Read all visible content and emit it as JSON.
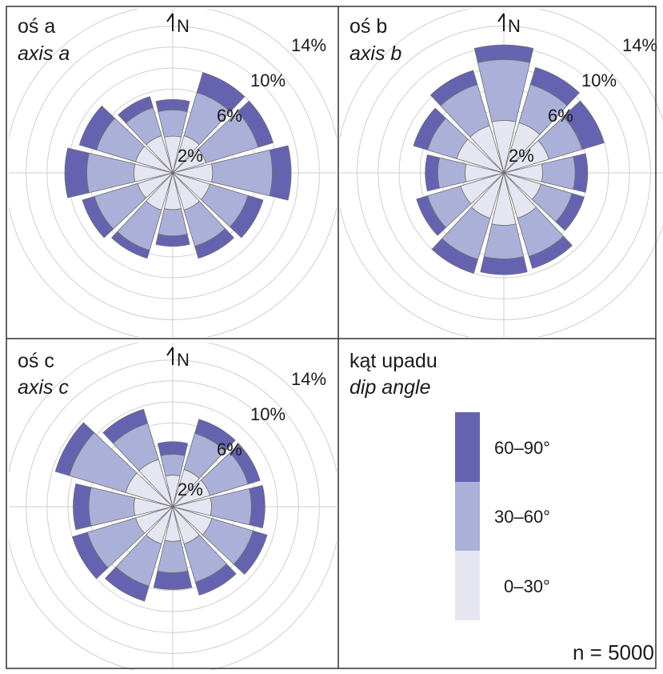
{
  "colors": {
    "band_0_30": "#e6e6f2",
    "band_30_60": "#aab0d8",
    "band_60_90": "#6563b0",
    "outline": "#6f6f6f",
    "grid": "#cfcfcf",
    "frame": "#333333"
  },
  "north_label": "N",
  "legend": {
    "title": "kąt upadu",
    "subtitle": "dip angle",
    "items": [
      {
        "label": "60–90°",
        "color": "#6563b0"
      },
      {
        "label": "30–60°",
        "color": "#aab0d8"
      },
      {
        "label": "0–30°",
        "color": "#e6e6f2"
      }
    ]
  },
  "sample_size": "n = 5000",
  "chart_data": [
    {
      "type": "rose",
      "title": "oś a",
      "subtitle": "axis a",
      "ring_labels": [
        "2%",
        "6%",
        "10%",
        "14%"
      ],
      "ring_values": [
        2,
        6,
        10,
        14
      ],
      "grid_extent": 16,
      "sector_width_deg": 30,
      "sectors": [
        {
          "direction": 0,
          "v0_30": 3.5,
          "v30_60": 6.0,
          "v60_90": 7.0
        },
        {
          "direction": 30,
          "v0_30": 3.7,
          "v30_60": 8.0,
          "v60_90": 10.0
        },
        {
          "direction": 60,
          "v0_30": 3.3,
          "v30_60": 8.5,
          "v60_90": 10.0
        },
        {
          "direction": 90,
          "v0_30": 3.8,
          "v30_60": 9.5,
          "v60_90": 11.3
        },
        {
          "direction": 120,
          "v0_30": 3.7,
          "v30_60": 7.5,
          "v60_90": 9.0
        },
        {
          "direction": 150,
          "v0_30": 3.7,
          "v30_60": 7.3,
          "v60_90": 8.5
        },
        {
          "direction": 180,
          "v0_30": 3.5,
          "v30_60": 6.0,
          "v60_90": 7.0
        },
        {
          "direction": 210,
          "v0_30": 3.7,
          "v30_60": 7.7,
          "v60_90": 8.5
        },
        {
          "direction": 240,
          "v0_30": 3.5,
          "v30_60": 7.8,
          "v60_90": 9.0
        },
        {
          "direction": 270,
          "v0_30": 3.7,
          "v30_60": 8.2,
          "v60_90": 10.3
        },
        {
          "direction": 300,
          "v0_30": 3.7,
          "v30_60": 7.6,
          "v60_90": 9.3
        },
        {
          "direction": 330,
          "v0_30": 3.7,
          "v30_60": 6.5,
          "v60_90": 7.6
        }
      ]
    },
    {
      "type": "rose",
      "title": "oś b",
      "subtitle": "axis b",
      "ring_labels": [
        "2%",
        "6%",
        "10%",
        "14%"
      ],
      "ring_values": [
        2,
        6,
        10,
        14
      ],
      "grid_extent": 16,
      "sector_width_deg": 30,
      "sectors": [
        {
          "direction": 0,
          "v0_30": 5.0,
          "v30_60": 10.8,
          "v60_90": 12.2
        },
        {
          "direction": 30,
          "v0_30": 5.0,
          "v30_60": 8.8,
          "v60_90": 10.5
        },
        {
          "direction": 60,
          "v0_30": 4.5,
          "v30_60": 7.8,
          "v60_90": 10.0
        },
        {
          "direction": 90,
          "v0_30": 3.7,
          "v30_60": 6.8,
          "v60_90": 8.0
        },
        {
          "direction": 120,
          "v0_30": 3.7,
          "v30_60": 6.8,
          "v60_90": 8.0
        },
        {
          "direction": 150,
          "v0_30": 4.5,
          "v30_60": 8.3,
          "v60_90": 9.5
        },
        {
          "direction": 180,
          "v0_30": 5.0,
          "v30_60": 8.2,
          "v60_90": 9.7
        },
        {
          "direction": 210,
          "v0_30": 4.5,
          "v30_60": 8.6,
          "v60_90": 10.0
        },
        {
          "direction": 240,
          "v0_30": 4.3,
          "v30_60": 7.6,
          "v60_90": 8.7
        },
        {
          "direction": 270,
          "v0_30": 3.7,
          "v30_60": 6.3,
          "v60_90": 7.5
        },
        {
          "direction": 300,
          "v0_30": 4.7,
          "v30_60": 7.6,
          "v60_90": 9.0
        },
        {
          "direction": 330,
          "v0_30": 4.7,
          "v30_60": 8.8,
          "v60_90": 10.2
        }
      ]
    },
    {
      "type": "rose",
      "title": "oś c",
      "subtitle": "axis c",
      "ring_labels": [
        "2%",
        "6%",
        "10%",
        "14%"
      ],
      "ring_values": [
        2,
        6,
        10,
        14
      ],
      "grid_extent": 16,
      "sector_width_deg": 30,
      "sectors": [
        {
          "direction": 0,
          "v0_30": 3.0,
          "v30_60": 5.0,
          "v60_90": 6.2
        },
        {
          "direction": 30,
          "v0_30": 3.7,
          "v30_60": 7.3,
          "v60_90": 8.7
        },
        {
          "direction": 60,
          "v0_30": 3.7,
          "v30_60": 7.5,
          "v60_90": 8.7
        },
        {
          "direction": 90,
          "v0_30": 3.7,
          "v30_60": 7.5,
          "v60_90": 8.8
        },
        {
          "direction": 120,
          "v0_30": 3.9,
          "v30_60": 8.0,
          "v60_90": 9.4
        },
        {
          "direction": 150,
          "v0_30": 3.7,
          "v30_60": 7.5,
          "v60_90": 8.8
        },
        {
          "direction": 180,
          "v0_30": 3.3,
          "v30_60": 6.3,
          "v60_90": 7.9
        },
        {
          "direction": 210,
          "v0_30": 3.7,
          "v30_60": 7.9,
          "v60_90": 9.4
        },
        {
          "direction": 240,
          "v0_30": 3.7,
          "v30_60": 8.5,
          "v60_90": 10.0
        },
        {
          "direction": 270,
          "v0_30": 3.7,
          "v30_60": 8.0,
          "v60_90": 9.5
        },
        {
          "direction": 300,
          "v0_30": 4.7,
          "v30_60": 10.3,
          "v60_90": 11.7
        },
        {
          "direction": 330,
          "v0_30": 4.7,
          "v30_60": 8.3,
          "v60_90": 9.7
        }
      ]
    }
  ]
}
